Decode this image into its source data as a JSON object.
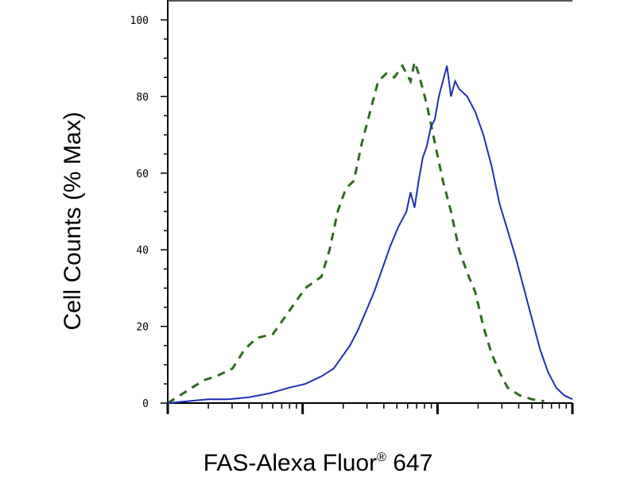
{
  "chart_data": {
    "type": "line",
    "xlabel_main": "FAS-Alexa Fluor",
    "xlabel_reg": "®",
    "xlabel_tail": " 647",
    "ylabel": "Cell Counts (% Max)",
    "ylim": [
      0,
      100
    ],
    "yticks": [
      "0",
      "20",
      "40",
      "60",
      "80",
      "100"
    ],
    "x_scale": "log",
    "xlim": [
      0.0,
      1.0
    ],
    "grid": false,
    "series": [
      {
        "style": "dashed",
        "color": "#2e6b1f",
        "points": [
          [
            0.0,
            0
          ],
          [
            0.03,
            2
          ],
          [
            0.06,
            4
          ],
          [
            0.09,
            6
          ],
          [
            0.12,
            7
          ],
          [
            0.16,
            9
          ],
          [
            0.19,
            14
          ],
          [
            0.22,
            17
          ],
          [
            0.26,
            18
          ],
          [
            0.3,
            24
          ],
          [
            0.34,
            30
          ],
          [
            0.38,
            33
          ],
          [
            0.4,
            40
          ],
          [
            0.42,
            50
          ],
          [
            0.44,
            56
          ],
          [
            0.46,
            58
          ],
          [
            0.48,
            68
          ],
          [
            0.5,
            76
          ],
          [
            0.52,
            84
          ],
          [
            0.54,
            86
          ],
          [
            0.56,
            85
          ],
          [
            0.58,
            88
          ],
          [
            0.6,
            84
          ],
          [
            0.61,
            89
          ],
          [
            0.62,
            86
          ],
          [
            0.64,
            78
          ],
          [
            0.66,
            68
          ],
          [
            0.68,
            58
          ],
          [
            0.7,
            50
          ],
          [
            0.72,
            40
          ],
          [
            0.74,
            34
          ],
          [
            0.76,
            29
          ],
          [
            0.78,
            20
          ],
          [
            0.8,
            13
          ],
          [
            0.82,
            8
          ],
          [
            0.84,
            4
          ],
          [
            0.87,
            2
          ],
          [
            0.9,
            1
          ],
          [
            0.93,
            0.5
          ]
        ]
      },
      {
        "style": "solid",
        "color": "#1f2fb5",
        "points": [
          [
            0.0,
            0
          ],
          [
            0.05,
            0.5
          ],
          [
            0.1,
            1
          ],
          [
            0.15,
            1
          ],
          [
            0.2,
            1.5
          ],
          [
            0.25,
            2.5
          ],
          [
            0.3,
            4
          ],
          [
            0.34,
            5
          ],
          [
            0.38,
            7
          ],
          [
            0.41,
            9
          ],
          [
            0.43,
            12
          ],
          [
            0.45,
            15
          ],
          [
            0.47,
            19
          ],
          [
            0.49,
            24
          ],
          [
            0.51,
            29
          ],
          [
            0.53,
            35
          ],
          [
            0.55,
            41
          ],
          [
            0.57,
            46
          ],
          [
            0.59,
            50
          ],
          [
            0.6,
            55
          ],
          [
            0.61,
            51
          ],
          [
            0.62,
            58
          ],
          [
            0.63,
            64
          ],
          [
            0.64,
            67
          ],
          [
            0.65,
            72
          ],
          [
            0.66,
            74
          ],
          [
            0.67,
            80
          ],
          [
            0.68,
            84
          ],
          [
            0.69,
            88
          ],
          [
            0.7,
            80
          ],
          [
            0.71,
            84
          ],
          [
            0.72,
            82
          ],
          [
            0.74,
            80
          ],
          [
            0.76,
            76
          ],
          [
            0.78,
            70
          ],
          [
            0.8,
            62
          ],
          [
            0.82,
            52
          ],
          [
            0.84,
            45
          ],
          [
            0.86,
            38
          ],
          [
            0.88,
            30
          ],
          [
            0.9,
            22
          ],
          [
            0.92,
            14
          ],
          [
            0.94,
            8
          ],
          [
            0.96,
            4
          ],
          [
            0.98,
            2
          ],
          [
            1.0,
            1
          ]
        ]
      }
    ]
  }
}
